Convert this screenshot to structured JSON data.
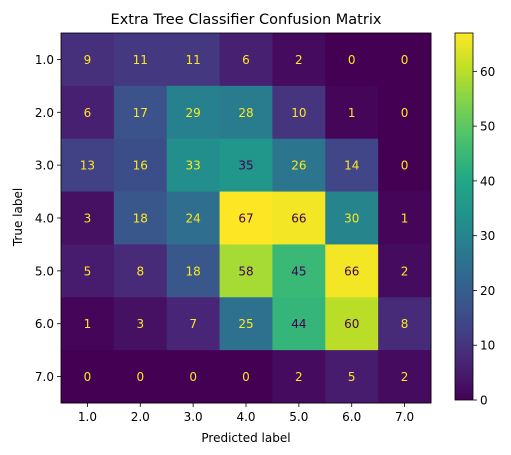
{
  "chart_data": {
    "type": "heatmap",
    "title": "Extra Tree Classifier Confusion Matrix",
    "xlabel": "Predicted label",
    "ylabel": "True label",
    "x_categories": [
      "1.0",
      "2.0",
      "3.0",
      "4.0",
      "5.0",
      "6.0",
      "7.0"
    ],
    "y_categories": [
      "1.0",
      "2.0",
      "3.0",
      "4.0",
      "5.0",
      "6.0",
      "7.0"
    ],
    "values": [
      [
        9,
        11,
        11,
        6,
        2,
        0,
        0
      ],
      [
        6,
        17,
        29,
        28,
        10,
        1,
        0
      ],
      [
        13,
        16,
        33,
        35,
        26,
        14,
        0
      ],
      [
        3,
        18,
        24,
        67,
        66,
        30,
        1
      ],
      [
        5,
        8,
        18,
        58,
        45,
        66,
        2
      ],
      [
        1,
        3,
        7,
        25,
        44,
        60,
        8
      ],
      [
        0,
        0,
        0,
        0,
        2,
        5,
        2
      ]
    ],
    "colormap": "viridis",
    "vmin": 0,
    "vmax": 67,
    "colorbar_ticks": [
      0,
      10,
      20,
      30,
      40,
      50,
      60
    ],
    "text_color_dark": "#fde725",
    "text_color_light": "#440154"
  }
}
